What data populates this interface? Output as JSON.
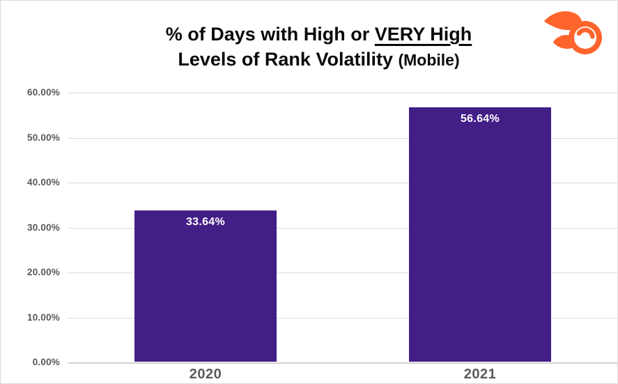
{
  "header": {
    "title_line1_prefix": "% of Days with High or ",
    "title_line1_underlined": "VERY High",
    "title_line2_main": "Levels of Rank Volatility ",
    "title_line2_paren": "(Mobile)"
  },
  "logo": {
    "name": "semrush-fireball-logo",
    "color": "#ff642d"
  },
  "chart_data": {
    "type": "bar",
    "title": "% of Days with High or VERY High Levels of Rank Volatility (Mobile)",
    "categories": [
      "2020",
      "2021"
    ],
    "values": [
      33.64,
      56.64
    ],
    "value_labels": [
      "33.64%",
      "56.64%"
    ],
    "y_ticks": [
      "60.00%",
      "50.00%",
      "40.00%",
      "30.00%",
      "20.00%",
      "10.00%",
      "0.00%"
    ],
    "ylim": [
      0,
      60
    ],
    "y_tick_step": 10,
    "grid": true,
    "legend": false,
    "bar_color": "#421e87",
    "value_label_color": "#ffffff",
    "axis_text_color": "#595959",
    "gridline_color": "#dbdbdb"
  }
}
